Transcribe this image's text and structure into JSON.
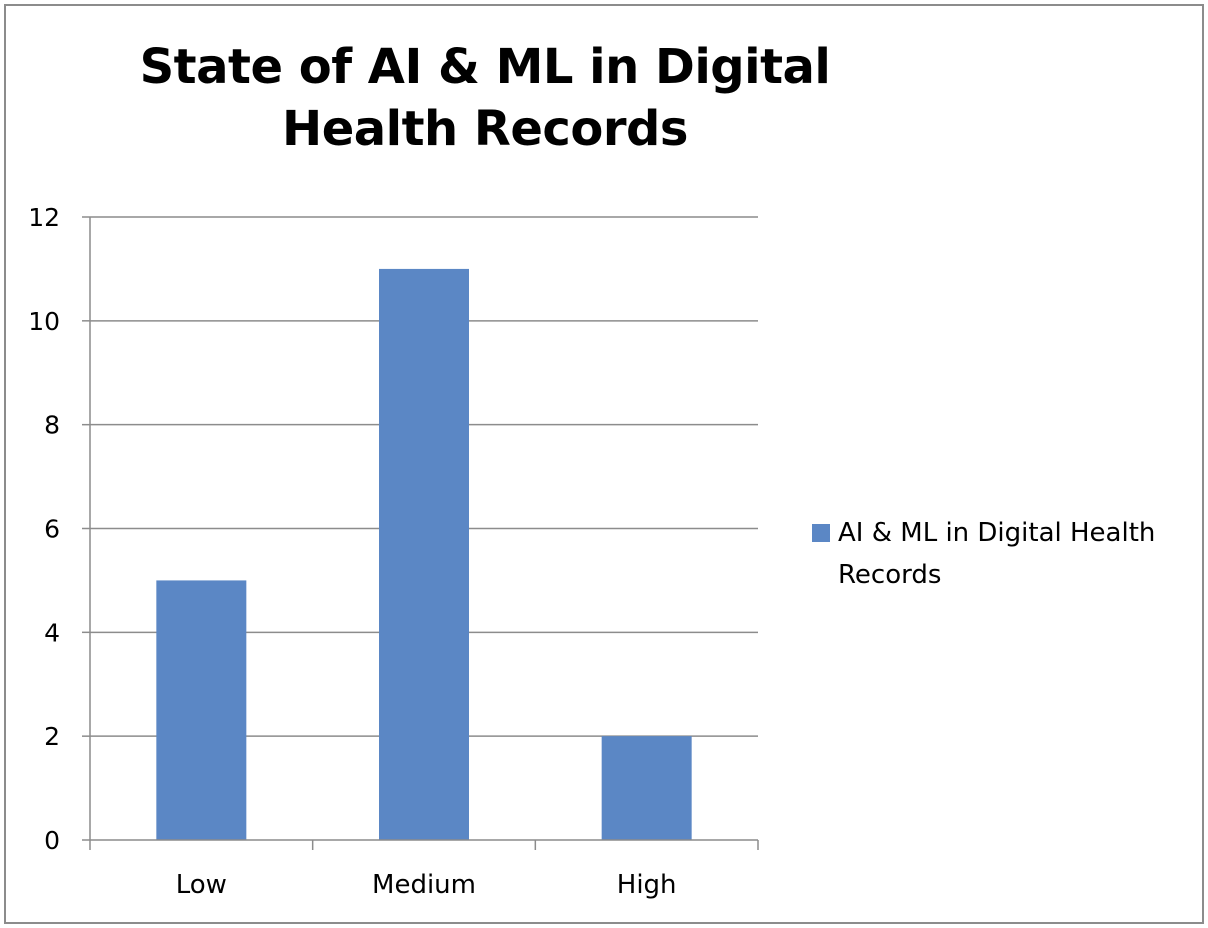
{
  "chart_data": {
    "type": "bar",
    "title": "State of AI & ML in Digital Health Records",
    "categories": [
      "Low",
      "Medium",
      "High"
    ],
    "series": [
      {
        "name": "AI & ML in Digital Health Records",
        "values": [
          5,
          11,
          2
        ],
        "color": "#5b87c5"
      }
    ],
    "yticks": [
      "0",
      "2",
      "4",
      "6",
      "8",
      "10",
      "12"
    ],
    "ylim": [
      0,
      12
    ],
    "grid": true,
    "legend_position": "right"
  }
}
